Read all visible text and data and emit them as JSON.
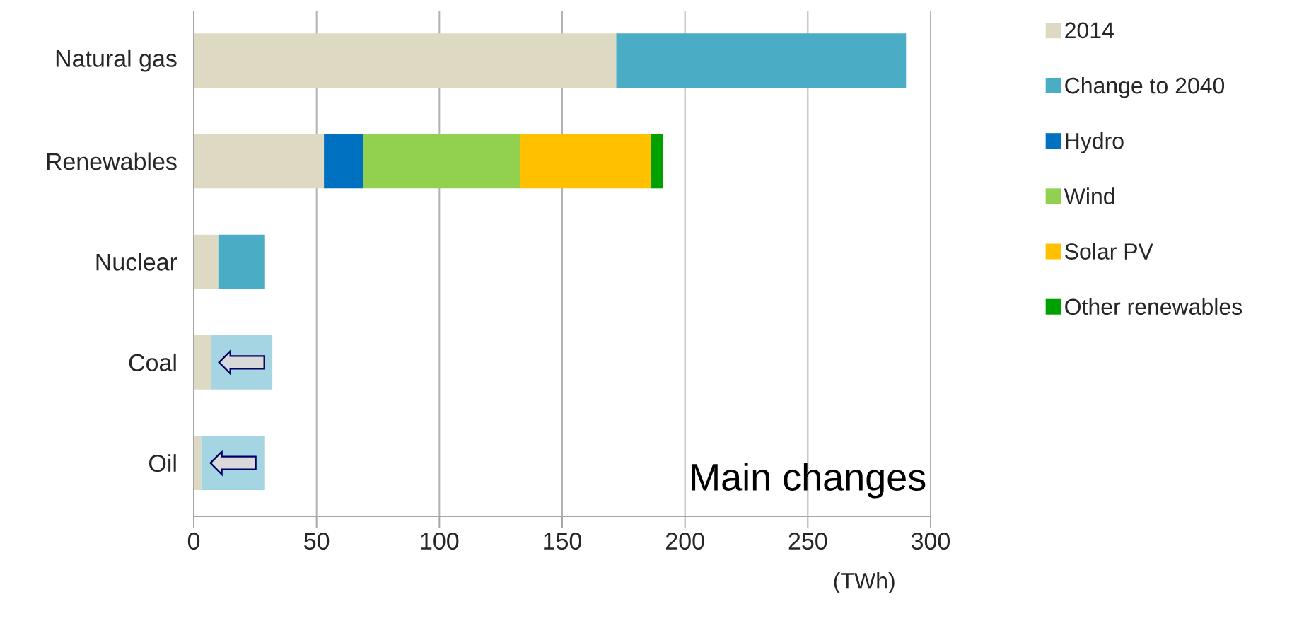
{
  "chart_data": {
    "type": "bar",
    "orientation": "horizontal",
    "stacked": true,
    "categories": [
      "Natural gas",
      "Renewables",
      "Nuclear",
      "Coal",
      "Oil"
    ],
    "series": [
      {
        "name": "2014",
        "color": "#ddd9c3",
        "values": [
          172,
          53,
          10,
          7,
          3
        ]
      },
      {
        "name": "Change to 2040",
        "color": "#4bacc6",
        "values": [
          118,
          null,
          19,
          null,
          null
        ]
      },
      {
        "name": "Hydro",
        "color": "#0070c0",
        "values": [
          null,
          16,
          null,
          null,
          null
        ]
      },
      {
        "name": "Wind",
        "color": "#92d050",
        "values": [
          null,
          64,
          null,
          null,
          null
        ]
      },
      {
        "name": "Solar PV",
        "color": "#ffc000",
        "values": [
          null,
          53,
          null,
          null,
          null
        ]
      },
      {
        "name": "Other renewables",
        "color": "#00a000",
        "values": [
          null,
          5,
          null,
          null,
          null
        ]
      },
      {
        "color": "#a5d5e2",
        "values": [
          null,
          null,
          null,
          25,
          26
        ]
      }
    ],
    "xlim": [
      0,
      300
    ],
    "xticks": [
      0,
      50,
      100,
      150,
      200,
      250,
      300
    ],
    "xlabel": "(TWh)",
    "grid": "x",
    "legend": "right",
    "annotations": [
      "Main changes"
    ]
  }
}
